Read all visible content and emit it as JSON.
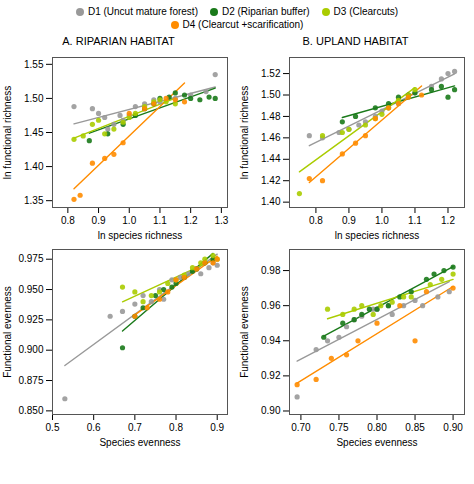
{
  "chart_data": [
    {
      "type": "scatter",
      "title": "A. RIPARIAN HABITAT",
      "xlabel": "ln species richness",
      "ylabel": "ln functional richness",
      "xlim": [
        0.75,
        1.32
      ],
      "ylim": [
        1.34,
        1.56
      ],
      "xticks": [
        0.8,
        0.9,
        {
          "value": 1.0,
          "label": "1.0"
        },
        1.1,
        1.2,
        1.3
      ],
      "yticks": [
        1.35,
        {
          "value": 1.4,
          "label": "1.40"
        },
        1.45,
        {
          "value": 1.5,
          "label": "1.50"
        },
        1.55
      ],
      "grid": false,
      "legend": "top",
      "series": [
        {
          "name": "D1 (Uncut mature forest)",
          "color": "#999999",
          "marker": "o",
          "line_style": "solid",
          "x": [
            0.82,
            0.88,
            0.9,
            0.92,
            0.93,
            0.95,
            0.97,
            0.98,
            1.0,
            1.02,
            1.05,
            1.08,
            1.1,
            1.15,
            1.2,
            1.25,
            1.28
          ],
          "values": [
            1.488,
            1.485,
            1.478,
            1.472,
            1.455,
            1.462,
            1.475,
            1.468,
            1.475,
            1.488,
            1.492,
            1.498,
            1.495,
            1.5,
            1.505,
            1.51,
            1.535
          ]
        },
        {
          "name": "D2 (Riparian buffer)",
          "color": "#1a7a1a",
          "marker": "o",
          "line_style": "solid",
          "x": [
            0.87,
            0.93,
            0.98,
            1.02,
            1.05,
            1.08,
            1.1,
            1.13,
            1.15,
            1.18,
            1.2,
            1.23,
            1.26,
            1.28
          ],
          "values": [
            1.438,
            1.448,
            1.462,
            1.475,
            1.485,
            1.492,
            1.5,
            1.502,
            1.508,
            1.505,
            1.5,
            1.498,
            1.502,
            1.5
          ]
        },
        {
          "name": "D3 (Clearcuts)",
          "color": "#aacc00",
          "marker": "o",
          "line_style": "solid",
          "x": [
            0.82,
            0.85,
            0.88,
            0.9,
            0.92,
            0.95,
            0.98,
            1.0,
            1.02,
            1.05,
            1.08,
            1.1,
            1.12,
            1.15
          ],
          "values": [
            1.44,
            1.445,
            1.462,
            1.468,
            1.448,
            1.455,
            1.465,
            1.472,
            1.478,
            1.488,
            1.495,
            1.498,
            1.495,
            1.492
          ]
        },
        {
          "name": "D4 (Clearcut +scarification)",
          "color": "#ff8c00",
          "marker": "o",
          "line_style": "solid",
          "x": [
            0.82,
            0.84,
            0.88,
            0.92,
            0.95,
            0.98,
            1.0,
            1.05,
            1.08,
            1.12,
            1.15,
            1.18
          ],
          "values": [
            1.352,
            1.358,
            1.405,
            1.412,
            1.418,
            1.435,
            1.478,
            1.485,
            1.492,
            1.5,
            1.498,
            1.495
          ]
        }
      ]
    },
    {
      "type": "scatter",
      "title": "B. UPLAND HABITAT",
      "xlabel": "ln species richness",
      "ylabel": "ln functional richness",
      "xlim": [
        0.72,
        1.25
      ],
      "ylim": [
        1.395,
        1.535
      ],
      "xticks": [
        0.8,
        0.9,
        {
          "value": 1.0,
          "label": "1.0"
        },
        1.1,
        1.2
      ],
      "yticks": [
        {
          "value": 1.4,
          "label": "1.40"
        },
        1.42,
        1.44,
        1.46,
        1.48,
        {
          "value": 1.5,
          "label": "1.50"
        },
        1.52
      ],
      "grid": false,
      "series": [
        {
          "name": "D1 (Uncut mature forest)",
          "color": "#999999",
          "marker": "o",
          "line_style": "solid",
          "x": [
            0.78,
            0.82,
            0.87,
            0.9,
            0.93,
            0.95,
            0.98,
            1.0,
            1.02,
            1.05,
            1.08,
            1.1,
            1.15,
            1.18,
            1.2,
            1.22
          ],
          "values": [
            1.462,
            1.46,
            1.465,
            1.468,
            1.472,
            1.475,
            1.48,
            1.485,
            1.488,
            1.492,
            1.5,
            1.502,
            1.508,
            1.515,
            1.52,
            1.522
          ]
        },
        {
          "name": "D2 (Riparian buffer)",
          "color": "#1a7a1a",
          "marker": "o",
          "line_style": "solid",
          "x": [
            0.88,
            0.92,
            0.98,
            1.02,
            1.05,
            1.08,
            1.1,
            1.15,
            1.18,
            1.2,
            1.22
          ],
          "values": [
            1.475,
            1.48,
            1.488,
            1.492,
            1.498,
            1.5,
            1.502,
            1.505,
            1.508,
            1.498,
            1.505
          ]
        },
        {
          "name": "D3 (Clearcuts)",
          "color": "#aacc00",
          "marker": "o",
          "line_style": "solid",
          "x": [
            0.75,
            0.82,
            0.88,
            0.9,
            0.95,
            0.98,
            1.0,
            1.02,
            1.05,
            1.08,
            1.1
          ],
          "values": [
            1.408,
            1.462,
            1.465,
            1.468,
            1.472,
            1.478,
            1.482,
            1.488,
            1.495,
            1.5,
            1.505
          ]
        },
        {
          "name": "D4 (Clearcut +scarification)",
          "color": "#ff8c00",
          "marker": "o",
          "line_style": "solid",
          "x": [
            0.78,
            0.82,
            0.88,
            0.92,
            0.95,
            0.98,
            1.02,
            1.05,
            1.08,
            1.12
          ],
          "values": [
            1.422,
            1.42,
            1.445,
            1.455,
            1.462,
            1.478,
            1.488,
            1.492,
            1.498,
            1.5
          ]
        }
      ]
    },
    {
      "type": "scatter",
      "xlabel": "Species evenness",
      "ylabel": "Functional evenness",
      "xlim": [
        0.5,
        0.925
      ],
      "ylim": [
        0.847,
        0.983
      ],
      "xticks": [
        0.5,
        0.6,
        0.7,
        0.8,
        0.9
      ],
      "yticks": [
        {
          "value": 0.85,
          "label": "0.850"
        },
        0.875,
        {
          "value": 0.9,
          "label": "0.900"
        },
        0.925,
        {
          "value": 0.95,
          "label": "0.950"
        },
        0.975
      ],
      "grid": false,
      "series": [
        {
          "name": "D1 (Uncut mature forest)",
          "color": "#999999",
          "marker": "o",
          "line_style": "solid",
          "x": [
            0.53,
            0.64,
            0.67,
            0.7,
            0.72,
            0.74,
            0.76,
            0.77,
            0.79,
            0.81,
            0.83,
            0.85,
            0.86,
            0.88,
            0.89,
            0.9
          ],
          "values": [
            0.86,
            0.928,
            0.932,
            0.938,
            0.945,
            0.94,
            0.95,
            0.942,
            0.958,
            0.96,
            0.963,
            0.967,
            0.963,
            0.968,
            0.972,
            0.97
          ]
        },
        {
          "name": "D2 (Riparian buffer)",
          "color": "#1a7a1a",
          "marker": "o",
          "line_style": "solid",
          "x": [
            0.67,
            0.7,
            0.72,
            0.75,
            0.77,
            0.79,
            0.8,
            0.82,
            0.84,
            0.85,
            0.87,
            0.89
          ],
          "values": [
            0.902,
            0.928,
            0.935,
            0.945,
            0.95,
            0.952,
            0.955,
            0.96,
            0.965,
            0.967,
            0.972,
            0.975
          ]
        },
        {
          "name": "D3 (Clearcuts)",
          "color": "#aacc00",
          "marker": "o",
          "line_style": "solid",
          "x": [
            0.67,
            0.7,
            0.72,
            0.74,
            0.76,
            0.78,
            0.8,
            0.82,
            0.84,
            0.86,
            0.87,
            0.89,
            0.9
          ],
          "values": [
            0.952,
            0.948,
            0.94,
            0.945,
            0.948,
            0.955,
            0.958,
            0.962,
            0.968,
            0.972,
            0.975,
            0.978,
            0.975
          ]
        },
        {
          "name": "D4 (Clearcut +scarification)",
          "color": "#ff8c00",
          "marker": "o",
          "line_style": "solid",
          "x": [
            0.7,
            0.73,
            0.76,
            0.78,
            0.8,
            0.82,
            0.85,
            0.87,
            0.89,
            0.9
          ],
          "values": [
            0.928,
            0.935,
            0.942,
            0.948,
            0.958,
            0.96,
            0.967,
            0.972,
            0.972,
            0.975
          ]
        }
      ]
    },
    {
      "type": "scatter",
      "xlabel": "Species evenness",
      "ylabel": "Functional evenness",
      "xlim": [
        0.685,
        0.915
      ],
      "ylim": [
        0.898,
        0.992
      ],
      "xticks": [
        {
          "value": 0.7,
          "label": "0.70"
        },
        0.75,
        {
          "value": 0.8,
          "label": "0.80"
        },
        0.85,
        {
          "value": 0.9,
          "label": "0.90"
        }
      ],
      "yticks": [
        {
          "value": 0.9,
          "label": "0.90"
        },
        0.92,
        0.94,
        0.96,
        0.98
      ],
      "grid": false,
      "series": [
        {
          "name": "D1 (Uncut mature forest)",
          "color": "#999999",
          "marker": "o",
          "line_style": "solid",
          "x": [
            0.695,
            0.72,
            0.735,
            0.75,
            0.76,
            0.77,
            0.78,
            0.795,
            0.8,
            0.815,
            0.82,
            0.835,
            0.85,
            0.86,
            0.88,
            0.895
          ],
          "values": [
            0.908,
            0.935,
            0.94,
            0.942,
            0.948,
            0.952,
            0.954,
            0.958,
            0.958,
            0.96,
            0.955,
            0.96,
            0.963,
            0.96,
            0.965,
            0.968
          ]
        },
        {
          "name": "D2 (Riparian buffer)",
          "color": "#1a7a1a",
          "marker": "o",
          "line_style": "solid",
          "x": [
            0.73,
            0.755,
            0.77,
            0.78,
            0.79,
            0.8,
            0.815,
            0.83,
            0.845,
            0.865,
            0.875,
            0.888,
            0.9
          ],
          "values": [
            0.942,
            0.95,
            0.952,
            0.955,
            0.958,
            0.958,
            0.96,
            0.965,
            0.968,
            0.975,
            0.978,
            0.98,
            0.982
          ]
        },
        {
          "name": "D3 (Clearcuts)",
          "color": "#aacc00",
          "marker": "o",
          "line_style": "solid",
          "x": [
            0.735,
            0.755,
            0.77,
            0.78,
            0.795,
            0.805,
            0.82,
            0.835,
            0.845,
            0.87,
            0.885,
            0.9
          ],
          "values": [
            0.958,
            0.955,
            0.958,
            0.96,
            0.955,
            0.96,
            0.962,
            0.965,
            0.965,
            0.972,
            0.975,
            0.978
          ]
        },
        {
          "name": "D4 (Clearcut +scarification)",
          "color": "#ff8c00",
          "marker": "o",
          "line_style": "solid",
          "x": [
            0.695,
            0.72,
            0.74,
            0.76,
            0.775,
            0.8,
            0.83,
            0.85,
            0.865,
            0.9
          ],
          "values": [
            0.915,
            0.918,
            0.93,
            0.932,
            0.94,
            0.95,
            0.96,
            0.94,
            0.968,
            0.97
          ]
        }
      ]
    }
  ]
}
